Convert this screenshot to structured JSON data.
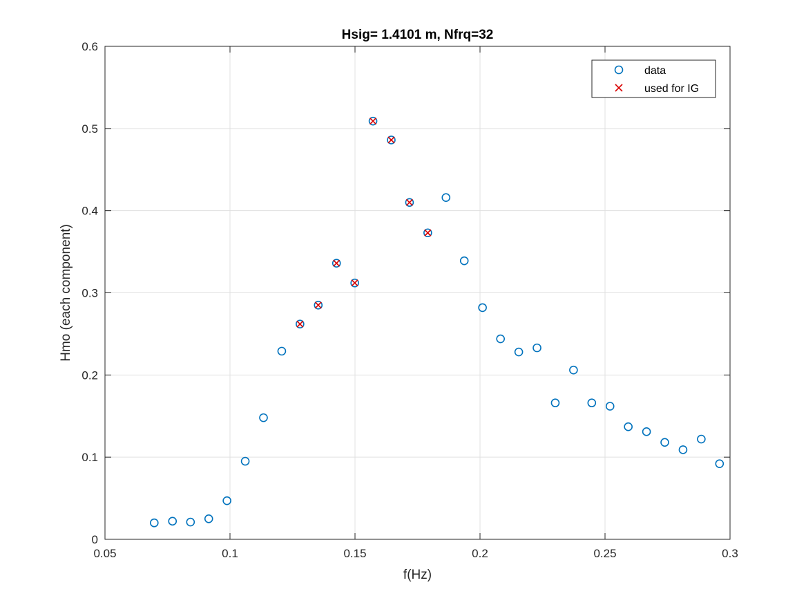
{
  "chart_data": {
    "type": "scatter",
    "title": "Hsig= 1.4101 m,   Nfrq=32",
    "xlabel": "f(Hz)",
    "ylabel": "Hmo (each component)",
    "xlim": [
      0.05,
      0.3
    ],
    "ylim": [
      0,
      0.6
    ],
    "xticks": [
      0.05,
      0.1,
      0.15,
      0.2,
      0.25,
      0.3
    ],
    "xtick_labels": [
      "0.05",
      "0.1",
      "0.15",
      "0.2",
      "0.25",
      "0.3"
    ],
    "yticks": [
      0,
      0.1,
      0.2,
      0.3,
      0.4,
      0.5,
      0.6
    ],
    "ytick_labels": [
      "0",
      "0.1",
      "0.2",
      "0.3",
      "0.4",
      "0.5",
      "0.6"
    ],
    "grid": true,
    "legend_position": "top-right",
    "series": [
      {
        "name": "data",
        "marker": "circle",
        "color": "#0072BD",
        "x": [
          0.0697,
          0.077,
          0.0842,
          0.0915,
          0.0988,
          0.1061,
          0.1134,
          0.1207,
          0.128,
          0.1353,
          0.1426,
          0.1499,
          0.1572,
          0.1645,
          0.1718,
          0.1791,
          0.1864,
          0.1937,
          0.201,
          0.2082,
          0.2155,
          0.2228,
          0.2301,
          0.2374,
          0.2447,
          0.252,
          0.2593,
          0.2666,
          0.2739,
          0.2812,
          0.2885,
          0.2958
        ],
        "y": [
          0.02,
          0.022,
          0.021,
          0.025,
          0.047,
          0.095,
          0.148,
          0.229,
          0.262,
          0.285,
          0.336,
          0.312,
          0.509,
          0.486,
          0.41,
          0.373,
          0.416,
          0.339,
          0.282,
          0.244,
          0.228,
          0.233,
          0.166,
          0.206,
          0.166,
          0.162,
          0.137,
          0.131,
          0.118,
          0.109,
          0.122,
          0.092
        ]
      },
      {
        "name": "used for IG",
        "marker": "x",
        "color": "#D90000",
        "x": [
          0.128,
          0.1353,
          0.1426,
          0.1499,
          0.1572,
          0.1645,
          0.1718,
          0.1791
        ],
        "y": [
          0.262,
          0.285,
          0.336,
          0.312,
          0.509,
          0.486,
          0.41,
          0.373
        ]
      }
    ]
  }
}
